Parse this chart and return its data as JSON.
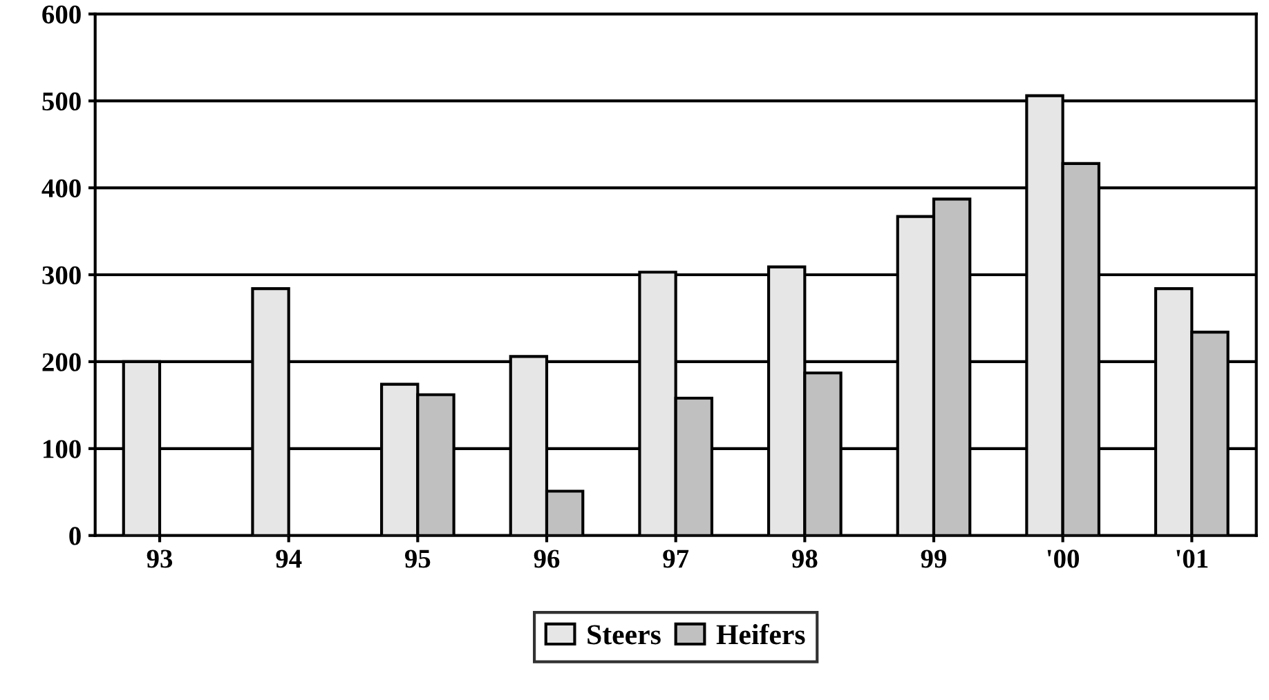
{
  "chart_data": {
    "type": "bar",
    "categories": [
      "93",
      "94",
      "95",
      "96",
      "97",
      "98",
      "99",
      "'00",
      "'01"
    ],
    "series": [
      {
        "name": "Steers",
        "color": "#e6e6e6",
        "values": [
          200,
          284,
          174,
          206,
          303,
          309,
          367,
          506,
          284
        ]
      },
      {
        "name": "Heifers",
        "color": "#c0c0c0",
        "values": [
          null,
          null,
          162,
          51,
          158,
          187,
          387,
          428,
          234
        ]
      }
    ],
    "ylim": [
      0,
      600
    ],
    "yticks": [
      0,
      100,
      200,
      300,
      400,
      500,
      600
    ],
    "grid": "y",
    "legend": "bottom"
  }
}
